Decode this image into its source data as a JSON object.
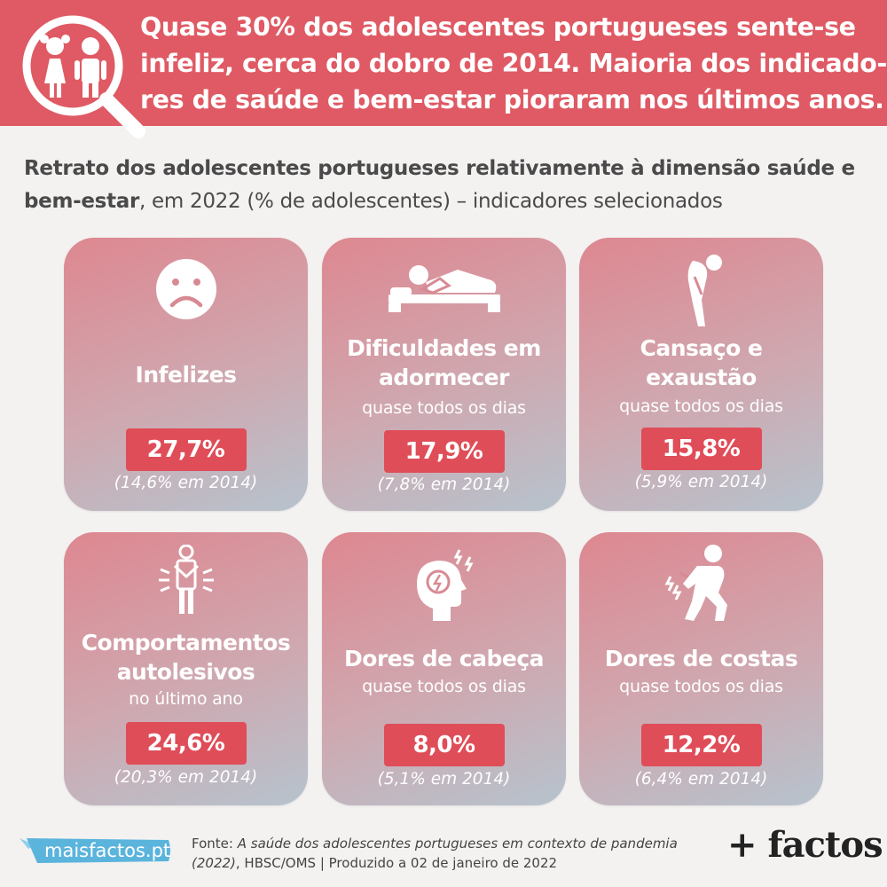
{
  "header": {
    "icon": "magnifier-children-icon",
    "headline_lines": [
      "Quase 30% dos adolescentes portugueses sente-se",
      "infeliz, cerca do dobro de 2014. Maioria dos indicado-",
      "res de saúde e bem-estar pioraram nos últimos anos."
    ]
  },
  "subtitle": {
    "line1": "Retrato dos adolescentes portugueses relativamente à dimensão saúde e",
    "line2_bold": "bem-estar",
    "line2_rest": ", em 2022 (% de adolescentes) – indicadores selecionados"
  },
  "cards": [
    {
      "icon": "sad-face-icon",
      "title": [
        "Infelizes"
      ],
      "note": "",
      "value": "27,7%",
      "prev": "(14,6% em 2014)"
    },
    {
      "icon": "sleeping-person-icon",
      "title": [
        "Dificuldades em",
        "adormecer"
      ],
      "note": "quase todos os dias",
      "value": "17,9%",
      "prev": "(7,8% em 2014)"
    },
    {
      "icon": "tired-person-icon",
      "title": [
        "Cansaço e",
        "exaustão"
      ],
      "note": "quase todos os dias",
      "value": "15,8%",
      "prev": "(5,9% em 2014)"
    },
    {
      "icon": "self-harm-person-icon",
      "title": [
        "Comportamentos",
        "autolesivos"
      ],
      "note": "no último ano",
      "value": "24,6%",
      "prev": "(20,3% em 2014)"
    },
    {
      "icon": "headache-icon",
      "title": [
        "Dores de cabeça"
      ],
      "note": "quase todos os dias",
      "value": "8,0%",
      "prev": "(5,1% em 2014)"
    },
    {
      "icon": "back-pain-icon",
      "title": [
        "Dores de costas"
      ],
      "note": "quase todos os dias",
      "value": "12,2%",
      "prev": "(6,4% em 2014)"
    }
  ],
  "footer": {
    "logo_text": "maisfactos.pt",
    "source_label": "Fonte: ",
    "source_title": "A saúde dos adolescentes portugueses em contexto de pandemia",
    "source_line2_italic": "(2022)",
    "source_line2_rest": ", HBSC/OMS | Produzido a 02 de janeiro de 2022",
    "brand": "+ factos"
  },
  "colors": {
    "header_bg": "#df5a64",
    "value_bg": "#df4d58",
    "page_bg": "#f4f2f1",
    "logo_bg": "#5ab4dc"
  }
}
